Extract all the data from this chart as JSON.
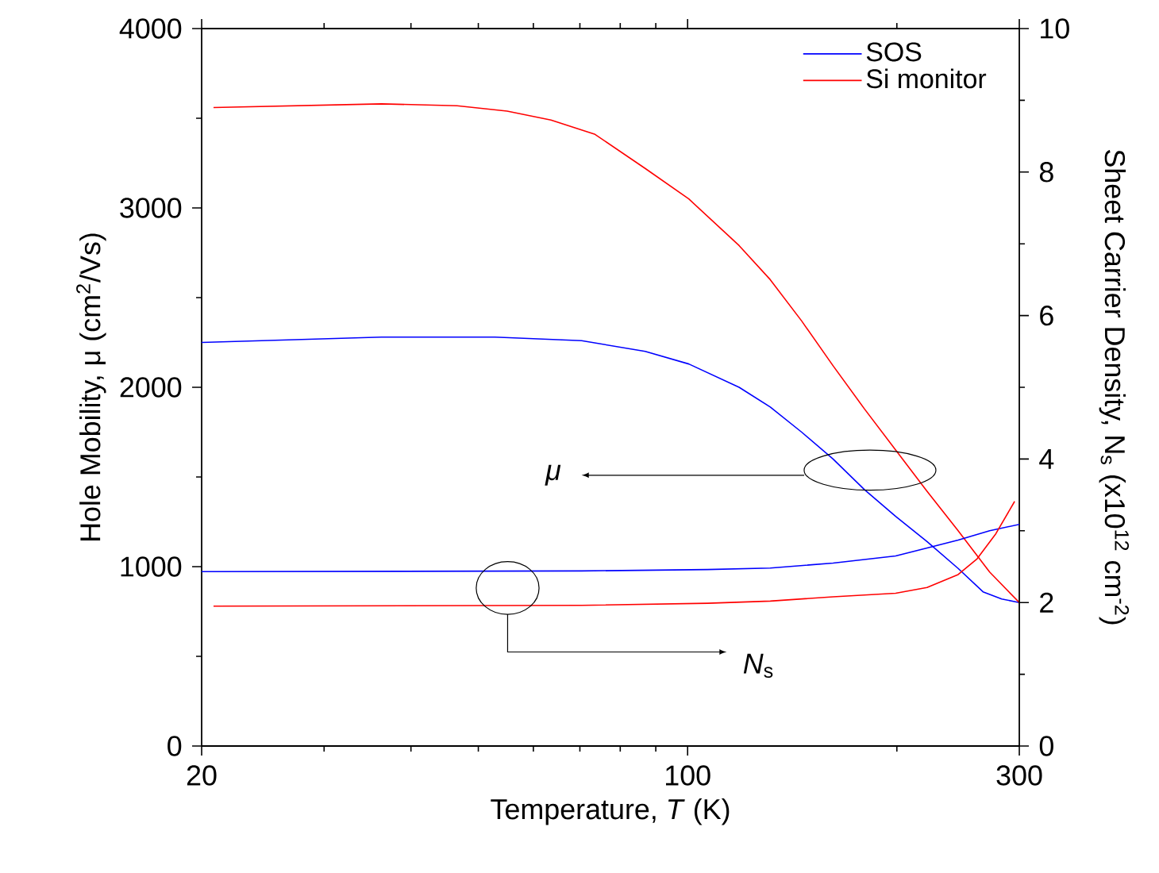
{
  "chart_data": {
    "type": "line",
    "xlabel": "Temperature, *T* (K)",
    "ylabel": "Hole Mobility, μ (cm$^{2}$/Vs)",
    "y2label": "Sheet Carrier Density, N$_{s}$ (x10$^{12}$ cm$^{-2}$)",
    "log": "x",
    "xlim": [
      20,
      300
    ],
    "xticks": [
      20,
      {
        "value": 30,
        "label": null
      },
      {
        "value": 40,
        "label": null
      },
      {
        "value": 50,
        "label": null
      },
      {
        "value": 60,
        "label": null
      },
      {
        "value": 70,
        "label": null
      },
      {
        "value": 80,
        "label": null
      },
      {
        "value": 90,
        "label": null
      },
      100,
      {
        "value": 200,
        "label": null
      },
      300
    ],
    "ylim": [
      0,
      4000
    ],
    "yticks": [
      0,
      {
        "value": 500,
        "label": null
      },
      1000,
      {
        "value": 1500,
        "label": null
      },
      2000,
      {
        "value": 2500,
        "label": null
      },
      3000,
      {
        "value": 3500,
        "label": null
      },
      4000
    ],
    "y2lim": [
      0,
      10
    ],
    "y2ticks": [
      0,
      {
        "value": 1,
        "label": null
      },
      2,
      {
        "value": 3,
        "label": null
      },
      4,
      {
        "value": 5,
        "label": null
      },
      6,
      {
        "value": 7,
        "label": null
      },
      8,
      {
        "value": 9,
        "label": null
      },
      10
    ],
    "legend": "top right",
    "annotations": [
      "*μ*",
      "*N*$_{s}$"
    ],
    "series": [
      {
        "name": "SOS",
        "color": "#0000ff",
        "x": [
          20,
          36.3,
          52.8,
          70.4,
          86.9,
          100.4,
          118.6,
          131.5,
          145.9,
          161.9,
          179.6,
          199.2,
          221,
          245,
          266,
          283,
          300
        ],
        "values": [
          2250,
          2280,
          2280,
          2260,
          2200,
          2130,
          2000,
          1890,
          1750,
          1600,
          1430,
          1280,
          1140,
          990,
          860,
          820,
          800
        ]
      },
      {
        "name": "Si monitor",
        "color": "#ff0000",
        "x": [
          20.8,
          36.3,
          46.6,
          55.0,
          63.6,
          73.6,
          86.9,
          100.4,
          118.6,
          131.5,
          145.9,
          161.9,
          179.6,
          199.2,
          221,
          245,
          271.9,
          300
        ],
        "values": [
          3560,
          3580,
          3570,
          3540,
          3490,
          3410,
          3220,
          3050,
          2790,
          2600,
          2370,
          2120,
          1880,
          1650,
          1420,
          1200,
          970,
          800
        ]
      },
      {
        "color": "#0000ff",
        "axis": "y2",
        "x": [
          20,
          70.4,
          106.9,
          131.5,
          161.9,
          199.2,
          221,
          245,
          271.9,
          300
        ],
        "values": [
          2.43,
          2.44,
          2.46,
          2.48,
          2.55,
          2.65,
          2.76,
          2.87,
          3.0,
          3.09
        ]
      },
      {
        "color": "#ff0000",
        "axis": "y2",
        "x": [
          20.8,
          70.4,
          106.9,
          131.5,
          161.9,
          199.2,
          221,
          245,
          260.9,
          277.6,
          295.4
        ],
        "values": [
          1.95,
          1.96,
          1.99,
          2.02,
          2.08,
          2.13,
          2.21,
          2.39,
          2.61,
          2.96,
          3.41
        ]
      }
    ]
  }
}
